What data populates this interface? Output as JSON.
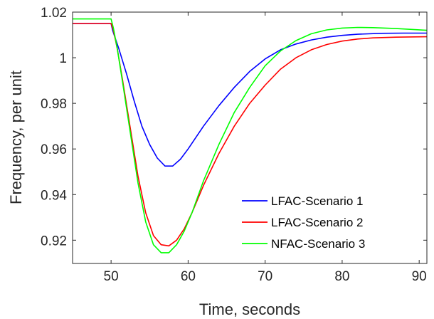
{
  "chart_data": {
    "type": "line",
    "xlabel": "Time, seconds",
    "ylabel": "Frequency, per unit",
    "xlim": [
      45,
      91
    ],
    "ylim": [
      0.9098,
      1.02
    ],
    "xticks": [
      "50",
      "60",
      "70",
      "80",
      "90"
    ],
    "yticks": [
      "0.92",
      "0.94",
      "0.96",
      "0.98",
      "1",
      "1.02"
    ],
    "grid": false,
    "legend_position": "bottom-right",
    "series": [
      {
        "name": "LFAC-Scenario 1",
        "color": "#0000FF",
        "x": [
          45,
          50,
          50.2,
          50.5,
          51,
          52,
          53,
          54,
          55,
          56,
          57,
          58,
          59,
          60,
          62,
          64,
          66,
          68,
          70,
          72,
          74,
          76,
          78,
          80,
          82,
          85,
          88,
          91
        ],
        "y": [
          1.015,
          1.015,
          1.012,
          1.009,
          1.004,
          0.993,
          0.981,
          0.97,
          0.962,
          0.956,
          0.9525,
          0.9525,
          0.9555,
          0.96,
          0.97,
          0.979,
          0.987,
          0.994,
          0.9995,
          1.0035,
          1.006,
          1.0078,
          1.009,
          1.0098,
          1.0103,
          1.0107,
          1.0108,
          1.0108
        ]
      },
      {
        "name": "LFAC-Scenario 2",
        "color": "#FF0000",
        "x": [
          45,
          50,
          50.3,
          50.8,
          51.5,
          52.5,
          53.5,
          54.5,
          55.5,
          56.5,
          57.5,
          58.5,
          59.5,
          60.5,
          62,
          64,
          66,
          68,
          70,
          72,
          74,
          76,
          78,
          80,
          82,
          84,
          87,
          91
        ],
        "y": [
          1.015,
          1.015,
          1.012,
          1.004,
          0.99,
          0.969,
          0.948,
          0.932,
          0.922,
          0.918,
          0.9175,
          0.92,
          0.925,
          0.932,
          0.944,
          0.958,
          0.97,
          0.98,
          0.988,
          0.995,
          1.0,
          1.0035,
          1.0058,
          1.0073,
          1.0082,
          1.0087,
          1.009,
          1.0092
        ]
      },
      {
        "name": "NFAC-Scenario 3",
        "color": "#00FF00",
        "x": [
          45,
          50,
          50.3,
          50.8,
          51.5,
          52.5,
          53.5,
          54.5,
          55.5,
          56.5,
          57.5,
          58.5,
          59.5,
          60.5,
          62,
          64,
          66,
          68,
          70,
          72,
          74,
          76,
          78,
          80,
          82,
          84,
          87,
          91
        ],
        "y": [
          1.017,
          1.017,
          1.013,
          1.004,
          0.989,
          0.967,
          0.945,
          0.928,
          0.918,
          0.9145,
          0.9145,
          0.918,
          0.924,
          0.932,
          0.946,
          0.962,
          0.976,
          0.987,
          0.9965,
          1.003,
          1.0075,
          1.0105,
          1.0122,
          1.013,
          1.0133,
          1.0132,
          1.0128,
          1.012
        ]
      }
    ]
  }
}
